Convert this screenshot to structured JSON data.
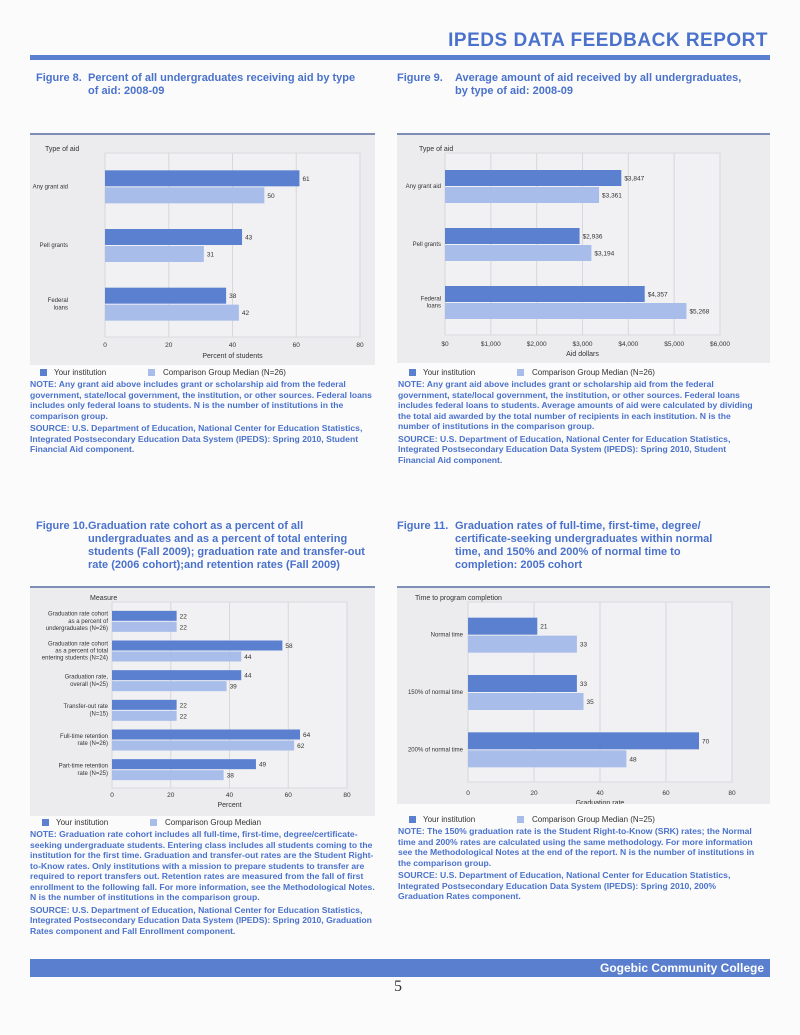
{
  "header": {
    "title": "IPEDS DATA FEEDBACK REPORT"
  },
  "footer": {
    "institution": "Gogebic Community College",
    "page_number": "5"
  },
  "colors": {
    "your_institution": "#5b80d0",
    "comparison": "#a8bde9",
    "text": "#4a72cc"
  },
  "figures": [
    {
      "number": "Figure 8.",
      "title": "Percent of all undergraduates receiving aid by type of aid: 2008-09",
      "legend": [
        "Your institution",
        "Comparison Group Median (N=26)"
      ],
      "note": "NOTE: Any grant aid above includes grant or scholarship aid from the federal government, state/local government, the institution, or other sources. Federal loans includes only federal loans to students. N is the number of institutions in the comparison group.",
      "source": "SOURCE: U.S. Department of Education, National Center for Education Statistics, Integrated Postsecondary Education Data System (IPEDS): Spring 2010, Student Financial Aid component."
    },
    {
      "number": "Figure 9.",
      "title": "Average amount of aid received by all undergraduates, by type of aid: 2008-09",
      "legend": [
        "Your institution",
        "Comparison Group Median (N=26)"
      ],
      "note": "NOTE: Any grant aid above includes grant or scholarship aid from the federal government, state/local government, the institution, or other sources. Federal loans includes federal loans to students. Average amounts of aid were calculated by dividing the total aid awarded by the total number of recipients in each institution. N is the number of institutions in the comparison group.",
      "source": "SOURCE: U.S. Department of Education, National Center for Education Statistics, Integrated Postsecondary Education Data System (IPEDS): Spring 2010, Student Financial Aid component."
    },
    {
      "number": "Figure 10.",
      "title": "Graduation rate cohort as a percent of all undergraduates and as a percent of total entering students (Fall 2009); graduation rate and transfer-out rate (2006 cohort);and retention rates (Fall 2009)",
      "legend": [
        "Your institution",
        "Comparison Group Median"
      ],
      "note": "NOTE: Graduation rate cohort includes all full-time, first-time, degree/certificate-seeking undergraduate students. Entering class includes all students coming to the institution for the first time. Graduation and transfer-out rates are the Student Right-to-Know rates. Only institutions with a mission to prepare students to transfer are required to report transfers out. Retention rates are measured from the fall of first enrollment to the following fall. For more information, see the Methodological Notes. N is the number of institutions in the comparison group.",
      "source": "SOURCE: U.S. Department of Education, National Center for Education Statistics, Integrated Postsecondary Education Data System (IPEDS): Spring 2010, Graduation Rates component and Fall Enrollment component."
    },
    {
      "number": "Figure 11.",
      "title": "Graduation rates of full-time, first-time, degree/ certificate-seeking undergraduates within normal time, and 150% and 200% of normal time to completion: 2005 cohort",
      "legend": [
        "Your institution",
        "Comparison Group Median (N=25)"
      ],
      "note": "NOTE: The 150% graduation rate is the Student Right-to-Know (SRK) rates; the Normal time and 200% rates are calculated using the same methodology. For more information see the Methodological Notes at the end of the report. N is the number of institutions in the comparison group.",
      "source": "SOURCE: U.S. Department of Education, National Center for Education Statistics, Integrated Postsecondary Education Data System (IPEDS): Spring 2010, 200% Graduation Rates component."
    }
  ],
  "chart_data": [
    {
      "type": "bar",
      "orientation": "horizontal",
      "ylabel": "Type of aid",
      "xlabel": "Percent of students",
      "categories": [
        "Any grant aid",
        "Pell grants",
        "Federal\nloans"
      ],
      "xlim": [
        0,
        80
      ],
      "ticks": [
        "0",
        "20",
        "40",
        "60",
        "80"
      ],
      "grid": true,
      "series": [
        {
          "name": "Your institution",
          "values": [
            61,
            43,
            38
          ],
          "labels": [
            "61",
            "43",
            "38"
          ]
        },
        {
          "name": "Comparison Group Median (N=26)",
          "values": [
            50,
            31,
            42
          ],
          "labels": [
            "50",
            "31",
            "42"
          ]
        }
      ]
    },
    {
      "type": "bar",
      "orientation": "horizontal",
      "ylabel": "Type of aid",
      "xlabel": "Aid dollars",
      "categories": [
        "Any grant aid",
        "Pell grants",
        "Federal\nloans"
      ],
      "xlim": [
        0,
        6000
      ],
      "ticks": [
        "$0",
        "$1,000",
        "$2,000",
        "$3,000",
        "$4,000",
        "$5,000",
        "$6,000"
      ],
      "grid": true,
      "series": [
        {
          "name": "Your institution",
          "values": [
            3847,
            2936,
            4357
          ],
          "labels": [
            "$3,847",
            "$2,936",
            "$4,357"
          ]
        },
        {
          "name": "Comparison Group Median (N=26)",
          "values": [
            3361,
            3194,
            5268
          ],
          "labels": [
            "$3,361",
            "$3,194",
            "$5,268"
          ]
        }
      ]
    },
    {
      "type": "bar",
      "orientation": "horizontal",
      "ylabel": "Measure",
      "xlabel": "Percent",
      "categories": [
        "Graduation rate cohort\nas a percent of\nundergraduates (N=26)",
        "Graduation rate cohort\nas a percent of total\nentering students (N=24)",
        "Graduation rate,\noverall (N=25)",
        "Transfer-out rate\n(N=15)",
        "Full-time retention\nrate (N=26)",
        "Part-time retention\nrate (N=25)"
      ],
      "xlim": [
        0,
        80
      ],
      "ticks": [
        "0",
        "20",
        "40",
        "60",
        "80"
      ],
      "grid": true,
      "series": [
        {
          "name": "Your institution",
          "values": [
            22,
            58,
            44,
            22,
            64,
            49
          ],
          "labels": [
            "22",
            "58",
            "44",
            "22",
            "64",
            "49"
          ]
        },
        {
          "name": "Comparison Group Median",
          "values": [
            22,
            44,
            39,
            22,
            62,
            38
          ],
          "labels": [
            "22",
            "44",
            "39",
            "22",
            "62",
            "38"
          ]
        }
      ]
    },
    {
      "type": "bar",
      "orientation": "horizontal",
      "ylabel": "Time to program completion",
      "xlabel": "Graduation rate",
      "categories": [
        "Normal time",
        "150% of normal time",
        "200% of normal time"
      ],
      "xlim": [
        0,
        80
      ],
      "ticks": [
        "0",
        "20",
        "40",
        "60",
        "80"
      ],
      "grid": true,
      "series": [
        {
          "name": "Your institution",
          "values": [
            21,
            33,
            70
          ],
          "labels": [
            "21",
            "33",
            "70"
          ]
        },
        {
          "name": "Comparison Group Median (N=25)",
          "values": [
            33,
            35,
            48
          ],
          "labels": [
            "33",
            "35",
            "48"
          ]
        }
      ]
    }
  ]
}
